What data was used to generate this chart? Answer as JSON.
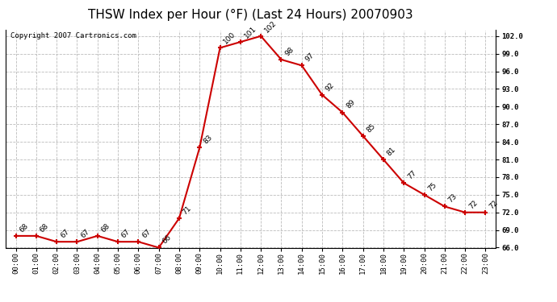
{
  "title": "THSW Index per Hour (°F) (Last 24 Hours) 20070903",
  "copyright": "Copyright 2007 Cartronics.com",
  "hours": [
    0,
    1,
    2,
    3,
    4,
    5,
    6,
    7,
    8,
    9,
    10,
    11,
    12,
    13,
    14,
    15,
    16,
    17,
    18,
    19,
    20,
    21,
    22,
    23
  ],
  "values": [
    68,
    68,
    67,
    67,
    68,
    67,
    67,
    66,
    71,
    83,
    100,
    101,
    102,
    98,
    97,
    92,
    89,
    85,
    81,
    77,
    75,
    73,
    72,
    72
  ],
  "xlabels": [
    "00:00",
    "01:00",
    "02:00",
    "03:00",
    "04:00",
    "05:00",
    "06:00",
    "07:00",
    "08:00",
    "09:00",
    "10:00",
    "11:00",
    "12:00",
    "13:00",
    "14:00",
    "15:00",
    "16:00",
    "17:00",
    "18:00",
    "19:00",
    "20:00",
    "21:00",
    "22:00",
    "23:00"
  ],
  "ylim": [
    66.0,
    103.0
  ],
  "yticks": [
    66.0,
    69.0,
    72.0,
    75.0,
    78.0,
    81.0,
    84.0,
    87.0,
    90.0,
    93.0,
    96.0,
    99.0,
    102.0
  ],
  "line_color": "#cc0000",
  "marker_color": "#cc0000",
  "bg_color": "#ffffff",
  "grid_color": "#bbbbbb",
  "title_fontsize": 11,
  "label_fontsize": 6.5,
  "annotation_fontsize": 6.5,
  "copyright_fontsize": 6.5
}
